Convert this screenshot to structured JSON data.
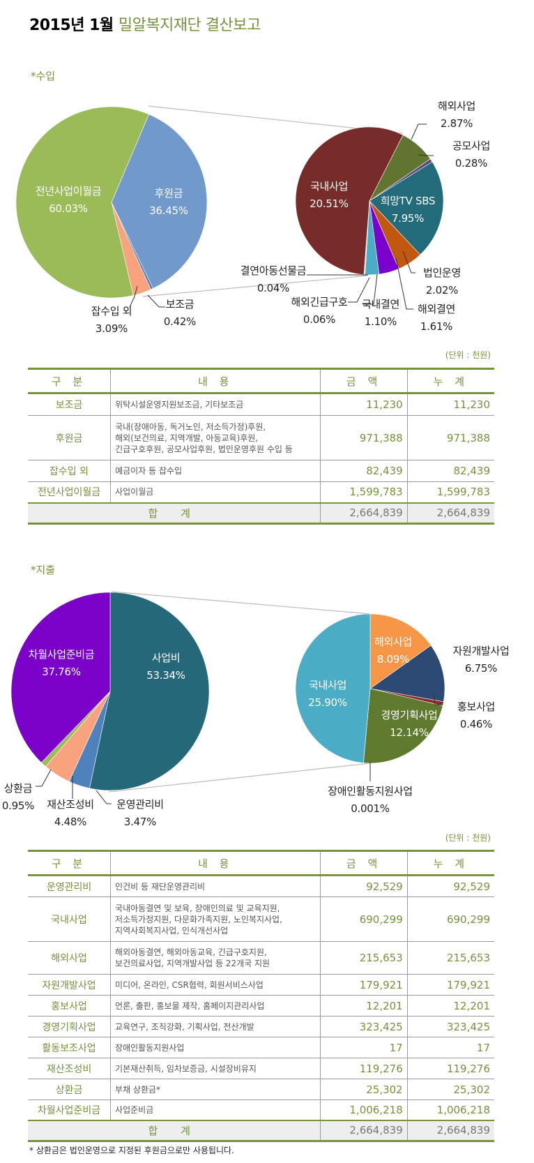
{
  "title": {
    "year_month": "2015년 1월",
    "org_report": "밀알복지재단 결산보고"
  },
  "colors": {
    "accent": "#76923c",
    "rule": "#77933c"
  },
  "income": {
    "section_label": "*수입",
    "unit": "(단위 : 천원)",
    "chart_main": [
      {
        "name": "후원금",
        "pct": "36.45%",
        "value": 36.45,
        "color": "#7299cb"
      },
      {
        "name": "보조금",
        "pct": "0.42%",
        "value": 0.42,
        "color": "#4f7fbd"
      },
      {
        "name": "잡수입 외",
        "pct": "3.09%",
        "value": 3.09,
        "color": "#f9a27e"
      },
      {
        "name": "전년사업이월금",
        "pct": "60.03%",
        "value": 60.03,
        "color": "#9bbb59"
      }
    ],
    "chart_detail": [
      {
        "name": "해외사업",
        "pct": "2.87%",
        "value": 2.87,
        "color": "#5f7530"
      },
      {
        "name": "공모사업",
        "pct": "0.28%",
        "value": 0.28,
        "color": "#5c4a7d"
      },
      {
        "name": "희망TV SBS",
        "pct": "7.95%",
        "value": 7.95,
        "color": "#236a7a"
      },
      {
        "name": "법인운영",
        "pct": "2.02%",
        "value": 2.02,
        "color": "#c0590f"
      },
      {
        "name": "해외결연",
        "pct": "1.61%",
        "value": 1.61,
        "color": "#7a00cc"
      },
      {
        "name": "국내결연",
        "pct": "1.10%",
        "value": 1.1,
        "color": "#4bacc6"
      },
      {
        "name": "해외긴급구호",
        "pct": "0.06%",
        "value": 0.06,
        "color": "#8a8a8a"
      },
      {
        "name": "결연아동선물금",
        "pct": "0.04%",
        "value": 0.04,
        "color": "#b0b0b0"
      },
      {
        "name": "국내사업",
        "pct": "20.51%",
        "value": 20.51,
        "color": "#772c2a"
      }
    ],
    "table": {
      "headers": [
        "구 분",
        "내 용",
        "금 액",
        "누 계"
      ],
      "rows": [
        {
          "category": "보조금",
          "content": [
            "위탁시설운영지원보조금, 기타보조금"
          ],
          "amount": "11,230",
          "cumulative": "11,230"
        },
        {
          "category": "후원금",
          "content": [
            "국내(장애아동, 독거노인, 저소득가정)후원,",
            "해외(보건의료, 지역개발, 아동교육)후원,",
            "긴급구호후원, 공모사업후원, 법인운영후원 수입 등"
          ],
          "amount": "971,388",
          "cumulative": "971,388"
        },
        {
          "category": "잡수입 외",
          "content": [
            "예금이자 등 잡수입"
          ],
          "amount": "82,439",
          "cumulative": "82,439"
        },
        {
          "category": "전년사업이월금",
          "content": [
            "사업이월금"
          ],
          "amount": "1,599,783",
          "cumulative": "1,599,783"
        }
      ],
      "total": {
        "label": "합 계",
        "amount": "2,664,839",
        "cumulative": "2,664,839"
      }
    }
  },
  "expense": {
    "section_label": "*지출",
    "unit": "(단위 : 천원)",
    "chart_main": [
      {
        "name": "사업비",
        "pct": "53.34%",
        "value": 53.34,
        "color": "#24687a"
      },
      {
        "name": "운영관리비",
        "pct": "3.47%",
        "value": 3.47,
        "color": "#4f81bd"
      },
      {
        "name": "재산조성비",
        "pct": "4.48%",
        "value": 4.48,
        "color": "#f9a27e"
      },
      {
        "name": "상환금",
        "pct": "0.95%",
        "value": 0.95,
        "color": "#9bbb59"
      },
      {
        "name": "차월사업준비금",
        "pct": "37.76%",
        "value": 37.76,
        "color": "#7b00c8"
      }
    ],
    "chart_detail": [
      {
        "name": "해외사업",
        "pct": "8.09%",
        "value": 8.09,
        "color": "#f79646"
      },
      {
        "name": "자원개발사업",
        "pct": "6.75%",
        "value": 6.75,
        "color": "#2c4a74"
      },
      {
        "name": "홍보사업",
        "pct": "0.46%",
        "value": 0.46,
        "color": "#8b2a2a"
      },
      {
        "name": "경영기획사업",
        "pct": "12.14%",
        "value": 12.14,
        "color": "#5f7a2e"
      },
      {
        "name": "장애인활동지원사업",
        "pct": "0.001%",
        "value": 0.001,
        "color": "#888888"
      },
      {
        "name": "국내사업",
        "pct": "25.90%",
        "value": 25.9,
        "color": "#4bacc6"
      }
    ],
    "table": {
      "headers": [
        "구 분",
        "내 용",
        "금 액",
        "누 계"
      ],
      "rows": [
        {
          "category": "운영관리비",
          "content": [
            "인건비 등 재단운영관리비"
          ],
          "amount": "92,529",
          "cumulative": "92,529"
        },
        {
          "category": "국내사업",
          "content": [
            "국내아동결연 및 보육, 장애인의료 및 교육지원,",
            "저소득가정지원, 다문화가족지원, 노인복지사업,",
            "지역사회복지사업, 인식개선사업"
          ],
          "amount": "690,299",
          "cumulative": "690,299"
        },
        {
          "category": "해외사업",
          "content": [
            "해외아동결연, 해외아동교육, 긴급구호지원,",
            "보건의료사업, 지역개발사업 등 22개국 지원"
          ],
          "amount": "215,653",
          "cumulative": "215,653"
        },
        {
          "category": "자원개발사업",
          "content": [
            "미디어, 온라인, CSR협력, 회원서비스사업"
          ],
          "amount": "179,921",
          "cumulative": "179,921"
        },
        {
          "category": "홍보사업",
          "content": [
            "언론, 출판, 홍보물 제작, 홈페이지관리사업"
          ],
          "amount": "12,201",
          "cumulative": "12,201"
        },
        {
          "category": "경영기획사업",
          "content": [
            "교육연구, 조직강화, 기획사업, 전산개발"
          ],
          "amount": "323,425",
          "cumulative": "323,425"
        },
        {
          "category": "활동보조사업",
          "content": [
            "장애인활동지원사업"
          ],
          "amount": "17",
          "cumulative": "17"
        },
        {
          "category": "재산조성비",
          "content": [
            "기본재산취득, 임차보증금, 시설장비유지"
          ],
          "amount": "119,276",
          "cumulative": "119,276"
        },
        {
          "category": "상환금",
          "content": [
            "부채 상환금*"
          ],
          "amount": "25,302",
          "cumulative": "25,302"
        },
        {
          "category": "차월사업준비금",
          "content": [
            "사업준비금"
          ],
          "amount": "1,006,218",
          "cumulative": "1,006,218"
        }
      ],
      "total": {
        "label": "합 계",
        "amount": "2,664,839",
        "cumulative": "2,664,839"
      }
    },
    "footnote": "* 상환금은 법인운영으로 지정된 후원금으로만 사용됩니다."
  }
}
